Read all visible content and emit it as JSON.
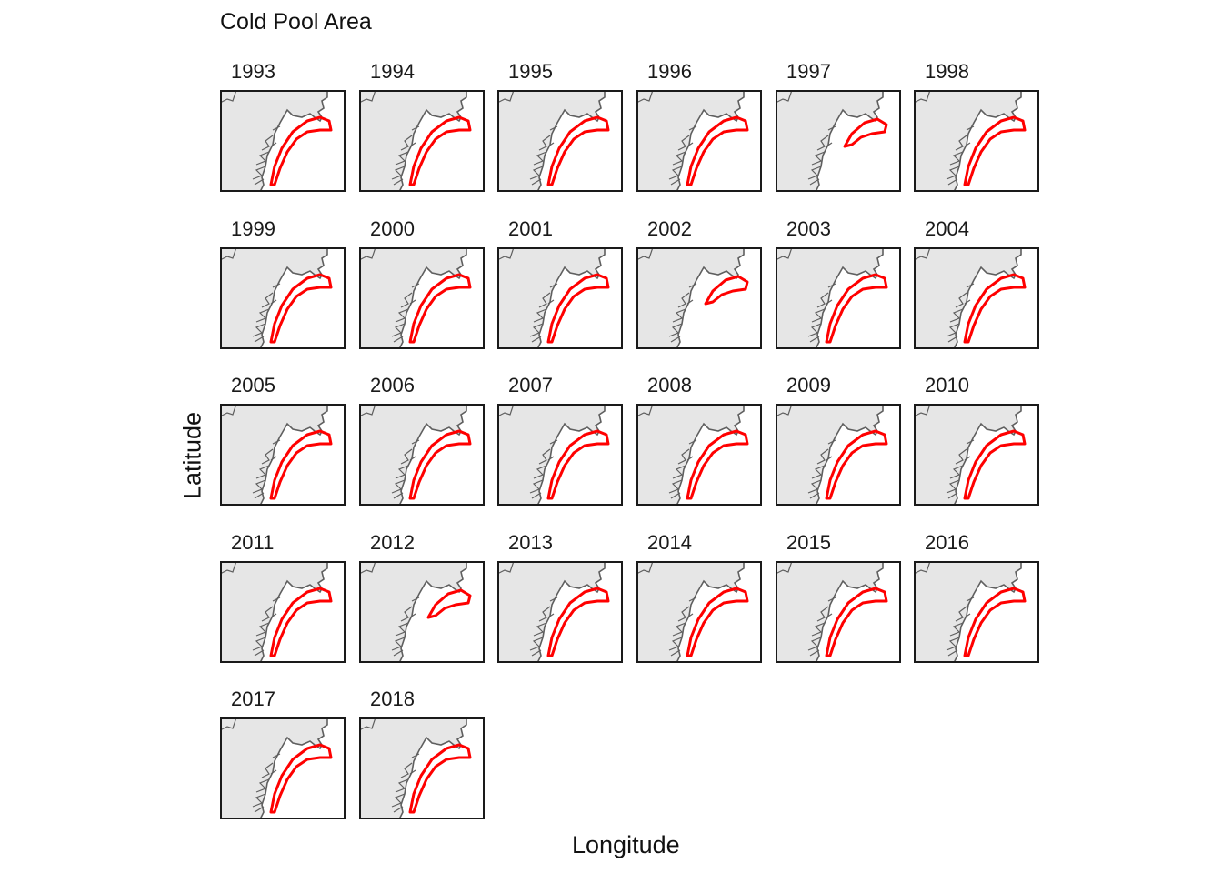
{
  "title": "Cold Pool Area",
  "x_label": "Longitude",
  "y_label": "Latitude",
  "colors": {
    "land": "#e6e6e6",
    "coastline": "#5f5f5f",
    "cold_pool_outline": "#ff0000",
    "panel_border": "#1a1a1a",
    "background": "#ffffff"
  },
  "panels": [
    {
      "year": "1993"
    },
    {
      "year": "1994"
    },
    {
      "year": "1995"
    },
    {
      "year": "1996"
    },
    {
      "year": "1997"
    },
    {
      "year": "1998"
    },
    {
      "year": "1999"
    },
    {
      "year": "2000"
    },
    {
      "year": "2001"
    },
    {
      "year": "2002"
    },
    {
      "year": "2003"
    },
    {
      "year": "2004"
    },
    {
      "year": "2005"
    },
    {
      "year": "2006"
    },
    {
      "year": "2007"
    },
    {
      "year": "2008"
    },
    {
      "year": "2009"
    },
    {
      "year": "2010"
    },
    {
      "year": "2011"
    },
    {
      "year": "2012"
    },
    {
      "year": "2013"
    },
    {
      "year": "2014"
    },
    {
      "year": "2015"
    },
    {
      "year": "2016"
    },
    {
      "year": "2017"
    },
    {
      "year": "2018"
    }
  ]
}
